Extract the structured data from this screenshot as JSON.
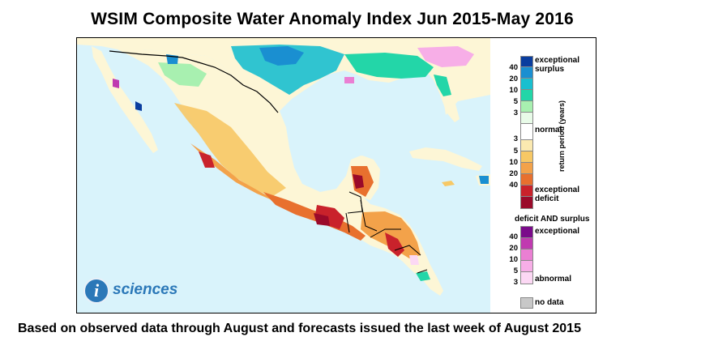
{
  "title": "WSIM Composite Water Anomaly Index Jun 2015-May 2016",
  "caption": "Based on observed data through August and forecasts issued the last week of August 2015",
  "logo": {
    "text": "sciences",
    "letter": "i"
  },
  "legend": {
    "axis_label": "return period (years)",
    "surplus_top": "exceptional",
    "surplus_bottom": "surplus",
    "normal": "normal",
    "deficit_top": "exceptional",
    "deficit_bottom": "deficit",
    "both_title": "deficit AND surplus",
    "both_top": "exceptional",
    "both_bottom": "abnormal",
    "nodata": "no data",
    "surplus_ticks": [
      "40",
      "20",
      "10",
      "5",
      "3"
    ],
    "deficit_ticks": [
      "3",
      "5",
      "10",
      "20",
      "40"
    ],
    "both_ticks": [
      "40",
      "20",
      "10",
      "5",
      "3"
    ],
    "colors": {
      "surplus": [
        "#0a3d9e",
        "#1a8fd1",
        "#19bfcf",
        "#23d6a8",
        "#a8f0b0",
        "#e8fbe8"
      ],
      "normal": "#ffffff",
      "deficit": [
        "#fbe9b0",
        "#f7c865",
        "#f3a24a",
        "#e8702e",
        "#c9222b",
        "#9a0a2a"
      ],
      "both": [
        "#7a0a8a",
        "#c03ab0",
        "#ea7fd3",
        "#f7aee7",
        "#fcd8f4"
      ],
      "nodata": "#c8c8c8",
      "ocean": "#d9f3fb",
      "land": "#fdf6d6"
    }
  }
}
